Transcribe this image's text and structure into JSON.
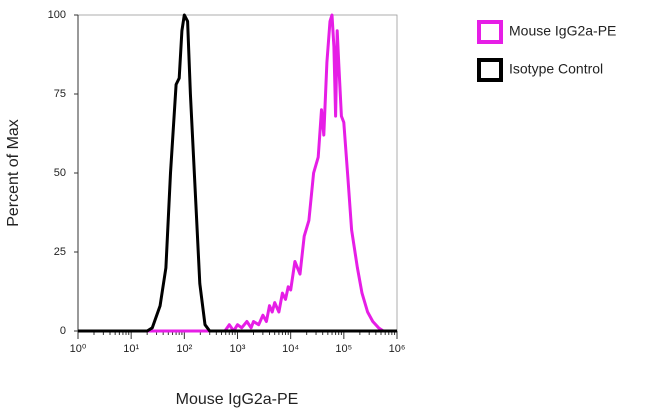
{
  "chart_data": {
    "type": "line",
    "x_label": "Mouse IgG2a-PE",
    "y_label": "Percent of Max",
    "xscale": "log",
    "xlim": [
      1,
      1000000
    ],
    "xticks": [
      {
        "value": 1,
        "label": "10⁰"
      },
      {
        "value": 10,
        "label": "10¹"
      },
      {
        "value": 100,
        "label": "10²"
      },
      {
        "value": 1000,
        "label": "10³"
      },
      {
        "value": 10000,
        "label": "10⁴"
      },
      {
        "value": 100000,
        "label": "10⁵"
      },
      {
        "value": 1000000,
        "label": "10⁶"
      }
    ],
    "ylim": [
      0,
      100
    ],
    "yticks": [
      0,
      25,
      50,
      75,
      100
    ],
    "legend": "right",
    "series": [
      {
        "name": "Mouse IgG2a-PE",
        "color": "#e61ee6",
        "x": [
          1,
          580,
          700,
          850,
          1000,
          1200,
          1500,
          1800,
          2000,
          2500,
          3000,
          3500,
          4000,
          4500,
          5000,
          6000,
          7000,
          8000,
          9000,
          10000,
          12000,
          15000,
          18000,
          22000,
          27000,
          33000,
          38000,
          42000,
          48000,
          55000,
          60000,
          65000,
          70000,
          75000,
          80000,
          90000,
          100000,
          120000,
          140000,
          180000,
          220000,
          280000,
          350000,
          450000,
          550000,
          1000000
        ],
        "values": [
          0,
          0,
          2,
          0,
          2,
          1,
          3,
          1,
          3,
          2,
          5,
          3,
          8,
          6,
          9,
          6,
          12,
          10,
          14,
          13,
          22,
          18,
          30,
          35,
          50,
          55,
          70,
          62,
          85,
          98,
          100,
          90,
          68,
          95,
          85,
          68,
          66,
          48,
          32,
          20,
          12,
          6,
          3,
          1,
          0,
          0
        ]
      },
      {
        "name": "Isotype Control",
        "color": "#000000",
        "x": [
          1,
          20,
          25,
          35,
          45,
          55,
          70,
          80,
          90,
          100,
          115,
          130,
          165,
          195,
          245,
          300,
          1000000
        ],
        "values": [
          0,
          0,
          1,
          8,
          20,
          50,
          78,
          80,
          95,
          100,
          98,
          75,
          40,
          15,
          2,
          0,
          0
        ]
      }
    ]
  }
}
